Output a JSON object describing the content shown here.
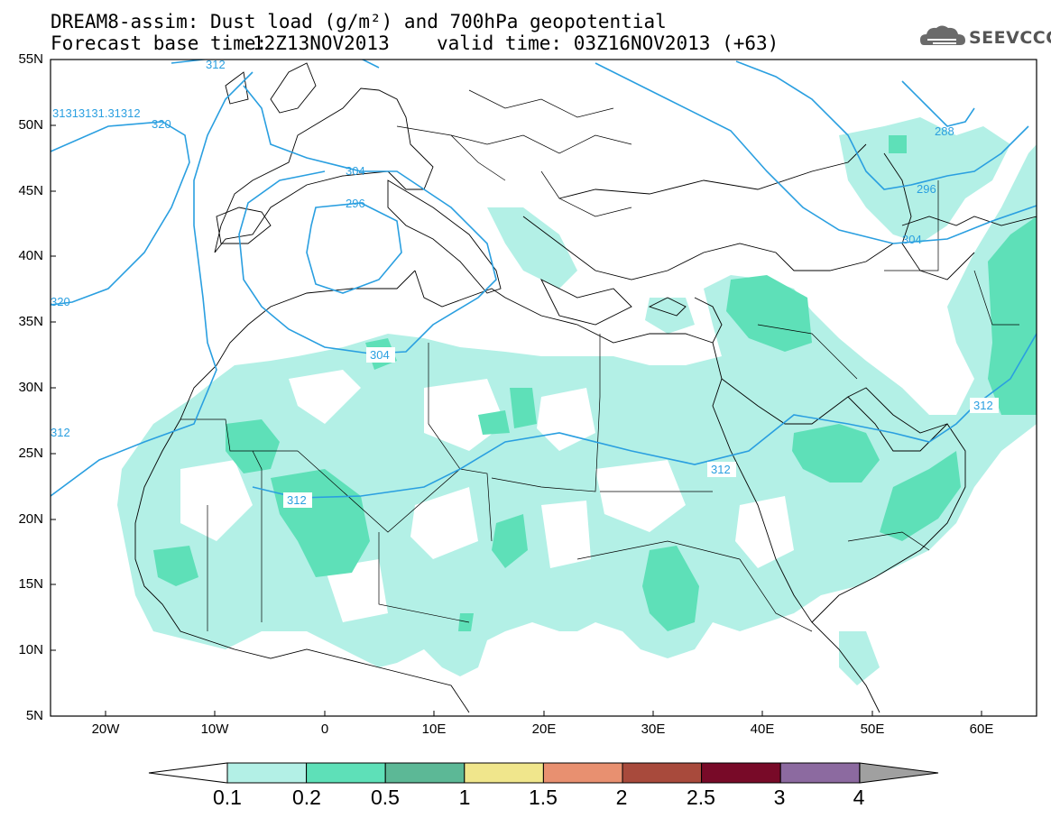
{
  "header": {
    "title_line1": "DREAM8-assim: Dust load (g/m²) and 700hPa geopotential",
    "base_label": "Forecast base time:",
    "base_time": "12Z13NOV2013",
    "valid_label": "valid time:",
    "valid_time": "03Z16NOV2013 (+63)"
  },
  "logo": {
    "text": "SEEVCCC",
    "icon": "cloud-icon"
  },
  "axes": {
    "lat_labels": [
      "55N",
      "50N",
      "45N",
      "40N",
      "35N",
      "30N",
      "25N",
      "20N",
      "15N",
      "10N",
      "5N"
    ],
    "lon_labels": [
      "20W",
      "10W",
      "0",
      "10E",
      "20E",
      "30E",
      "40E",
      "50E",
      "60E"
    ]
  },
  "contours": {
    "labels": [
      "312",
      "31313131.31312",
      "320",
      "320",
      "304",
      "296",
      "304",
      "312",
      "312",
      "312",
      "312",
      "288",
      "296",
      "304"
    ],
    "color": "#2a9fe0"
  },
  "colorbar": {
    "ticks": [
      "0.1",
      "0.2",
      "0.5",
      "1",
      "1.5",
      "2",
      "2.5",
      "3",
      "4"
    ],
    "colors": [
      "#b3f0e6",
      "#5ee0b8",
      "#5cb896",
      "#f0e68c",
      "#e89070",
      "#a84a3c",
      "#780a28",
      "#8c6aa0",
      "#a0a0a0"
    ]
  },
  "fill_colors": {
    "light": "#b3f0e6",
    "medium": "#5ee0b8"
  }
}
